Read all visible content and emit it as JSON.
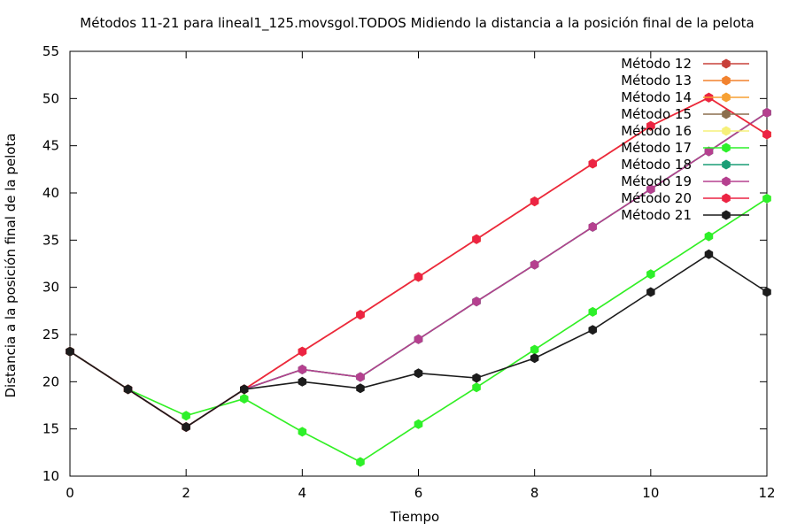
{
  "chart_data": {
    "type": "line",
    "title": "Métodos 11-21 para lineal1_125.movsgol.TODOS Midiendo la distancia a la posición final de la pelota",
    "xlabel": "Tiempo",
    "ylabel": "Distancia a la posición final de la pelota",
    "xlim": [
      0,
      12
    ],
    "ylim": [
      10,
      55
    ],
    "xticks": [
      0,
      2,
      4,
      6,
      8,
      10,
      12
    ],
    "yticks": [
      10,
      15,
      20,
      25,
      30,
      35,
      40,
      45,
      50,
      55
    ],
    "grid": false,
    "legend_position": "top-right",
    "x": [
      0,
      1,
      2,
      3,
      4,
      5,
      6,
      7,
      8,
      9,
      10,
      11,
      12
    ],
    "series": [
      {
        "name": "Método 12",
        "color": "#c8403a",
        "values": [
          23.2,
          19.2,
          15.2,
          19.2,
          23.2,
          27.1,
          31.1,
          35.1,
          39.1,
          43.1,
          47.1,
          50.1,
          46.2
        ]
      },
      {
        "name": "Método 13",
        "color": "#f2822e",
        "values": [
          23.2,
          19.2,
          15.2,
          19.2,
          23.2,
          27.1,
          31.1,
          35.1,
          39.1,
          43.1,
          47.1,
          50.1,
          46.2
        ]
      },
      {
        "name": "Método 14",
        "color": "#f7a133",
        "values": [
          23.2,
          19.2,
          15.2,
          19.2,
          23.2,
          27.1,
          31.1,
          35.1,
          39.1,
          43.1,
          47.1,
          50.1,
          46.2
        ]
      },
      {
        "name": "Método 15",
        "color": "#8b6f4e",
        "values": [
          23.2,
          19.2,
          15.2,
          19.2,
          21.3,
          20.5,
          24.5,
          28.5,
          32.4,
          36.4,
          40.4,
          44.4,
          48.5
        ]
      },
      {
        "name": "Método 16",
        "color": "#f6f07a",
        "values": [
          23.2,
          19.2,
          16.4,
          18.2,
          14.7,
          11.5,
          15.5,
          19.4,
          23.4,
          27.4,
          31.4,
          35.4,
          39.4
        ]
      },
      {
        "name": "Método 17",
        "color": "#2df02a",
        "values": [
          23.2,
          19.2,
          16.4,
          18.2,
          14.7,
          11.5,
          15.5,
          19.4,
          23.4,
          27.4,
          31.4,
          35.4,
          39.4
        ]
      },
      {
        "name": "Método 18",
        "color": "#1a9e76",
        "values": [
          23.2,
          19.2,
          15.2,
          19.2,
          21.3,
          20.5,
          24.5,
          28.5,
          32.4,
          36.4,
          40.4,
          44.4,
          48.5
        ]
      },
      {
        "name": "Método 19",
        "color": "#b5408f",
        "values": [
          23.2,
          19.2,
          15.2,
          19.2,
          21.3,
          20.5,
          24.5,
          28.5,
          32.4,
          36.4,
          40.4,
          44.4,
          48.5
        ]
      },
      {
        "name": "Método 20",
        "color": "#ec2443",
        "values": [
          23.2,
          19.2,
          15.2,
          19.2,
          23.2,
          27.1,
          31.1,
          35.1,
          39.1,
          43.1,
          47.1,
          50.1,
          46.2
        ]
      },
      {
        "name": "Método 21",
        "color": "#1c1c1c",
        "values": [
          23.2,
          19.2,
          15.2,
          19.2,
          20.0,
          19.3,
          20.9,
          20.4,
          22.5,
          25.5,
          29.5,
          33.5,
          29.5
        ]
      }
    ]
  }
}
